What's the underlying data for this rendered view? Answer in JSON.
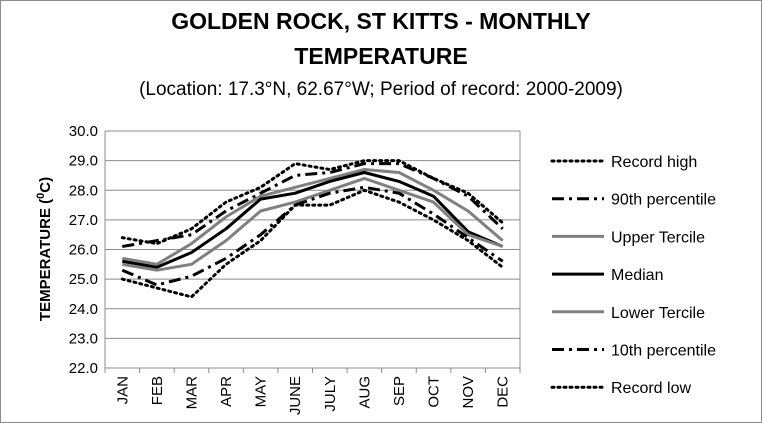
{
  "chart_data": {
    "type": "line",
    "title_line1": "GOLDEN ROCK, ST KITTS - MONTHLY",
    "title_line2": "TEMPERATURE",
    "subtitle": "(Location: 17.3°N, 62.67°W; Period of record: 2000-2009)",
    "xlabel": "",
    "ylabel": "TEMPERATURE (",
    "ylabel_sup": "0",
    "ylabel_end": "C)",
    "ylim": [
      22.0,
      30.0
    ],
    "yticks": [
      "22.0",
      "23.0",
      "24.0",
      "25.0",
      "26.0",
      "27.0",
      "28.0",
      "29.0",
      "30.0"
    ],
    "categories": [
      "JAN",
      "FEB",
      "MAR",
      "APR",
      "MAY",
      "JUNE",
      "JULY",
      "AUG",
      "SEP",
      "OCT",
      "NOV",
      "DEC"
    ],
    "grid": true,
    "legend_position": "right",
    "series": [
      {
        "name": "Record high",
        "style": "dotted",
        "color": "#000000",
        "width": 3,
        "values": [
          26.4,
          26.2,
          26.7,
          27.6,
          28.1,
          28.9,
          28.7,
          29.0,
          29.0,
          28.4,
          27.9,
          26.9
        ]
      },
      {
        "name": "90th percentile",
        "style": "dashdot",
        "color": "#000000",
        "width": 3,
        "values": [
          26.1,
          26.3,
          26.5,
          27.3,
          27.9,
          28.5,
          28.6,
          28.9,
          28.9,
          28.4,
          27.8,
          26.7
        ]
      },
      {
        "name": "Upper Tercile",
        "style": "solid",
        "color": "#808080",
        "width": 3,
        "values": [
          25.7,
          25.5,
          26.2,
          27.1,
          27.8,
          28.1,
          28.4,
          28.7,
          28.6,
          28.0,
          27.3,
          26.3
        ]
      },
      {
        "name": "Median",
        "style": "solid",
        "color": "#000000",
        "width": 3,
        "values": [
          25.6,
          25.4,
          25.9,
          26.7,
          27.7,
          27.9,
          28.3,
          28.6,
          28.3,
          27.8,
          26.6,
          26.1
        ]
      },
      {
        "name": "Lower Tercile",
        "style": "solid",
        "color": "#808080",
        "width": 3,
        "values": [
          25.5,
          25.3,
          25.5,
          26.3,
          27.3,
          27.6,
          28.0,
          28.4,
          28.0,
          27.6,
          26.5,
          26.1
        ]
      },
      {
        "name": "10th percentile",
        "style": "dashdot",
        "color": "#000000",
        "width": 3,
        "values": [
          25.3,
          24.8,
          25.1,
          25.7,
          26.5,
          27.5,
          27.9,
          28.1,
          27.9,
          27.2,
          26.4,
          25.6
        ]
      },
      {
        "name": "Record low",
        "style": "dotted",
        "color": "#000000",
        "width": 3,
        "values": [
          25.0,
          24.7,
          24.4,
          25.5,
          26.3,
          27.5,
          27.5,
          28.0,
          27.6,
          27.0,
          26.3,
          25.4
        ]
      }
    ]
  }
}
